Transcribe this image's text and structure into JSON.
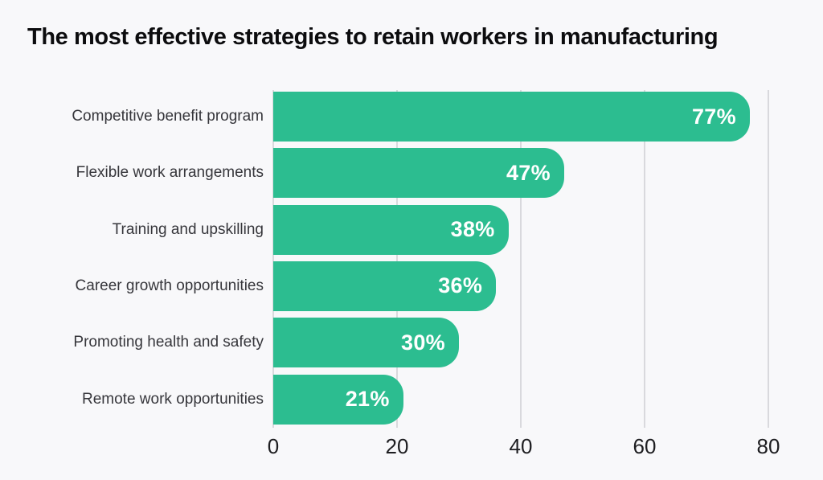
{
  "page": {
    "background": "#f8f8fa"
  },
  "header": {
    "title": "The most effective strategies to retain workers in manufacturing"
  },
  "chart_data": {
    "type": "bar",
    "orientation": "horizontal",
    "title": "The most effective strategies to retain workers in manufacturing",
    "categories": [
      "Competitive benefit program",
      "Flexible work arrangements",
      "Training and upskilling",
      "Career growth opportunities",
      "Promoting health and safety",
      "Remote work opportunities"
    ],
    "values": [
      77,
      47,
      38,
      36,
      30,
      21
    ],
    "value_labels": [
      "77%",
      "47%",
      "38%",
      "36%",
      "30%",
      "21%"
    ],
    "x_ticks": [
      0,
      20,
      40,
      60,
      80
    ],
    "x_tick_labels": [
      "0",
      "20",
      "40",
      "60",
      "80"
    ],
    "xlim": [
      0,
      85
    ],
    "xlabel": "",
    "ylabel": "",
    "grid": "vertical gridlines only, no axis lines",
    "legend": "none",
    "bar_color": "#2cbd90",
    "value_label_color": "#ffffff",
    "category_label_color": "#36363b",
    "tick_label_color": "#1d1d20",
    "gridline_color": "#d9d9dd",
    "title_color": "#0c0c0e"
  }
}
